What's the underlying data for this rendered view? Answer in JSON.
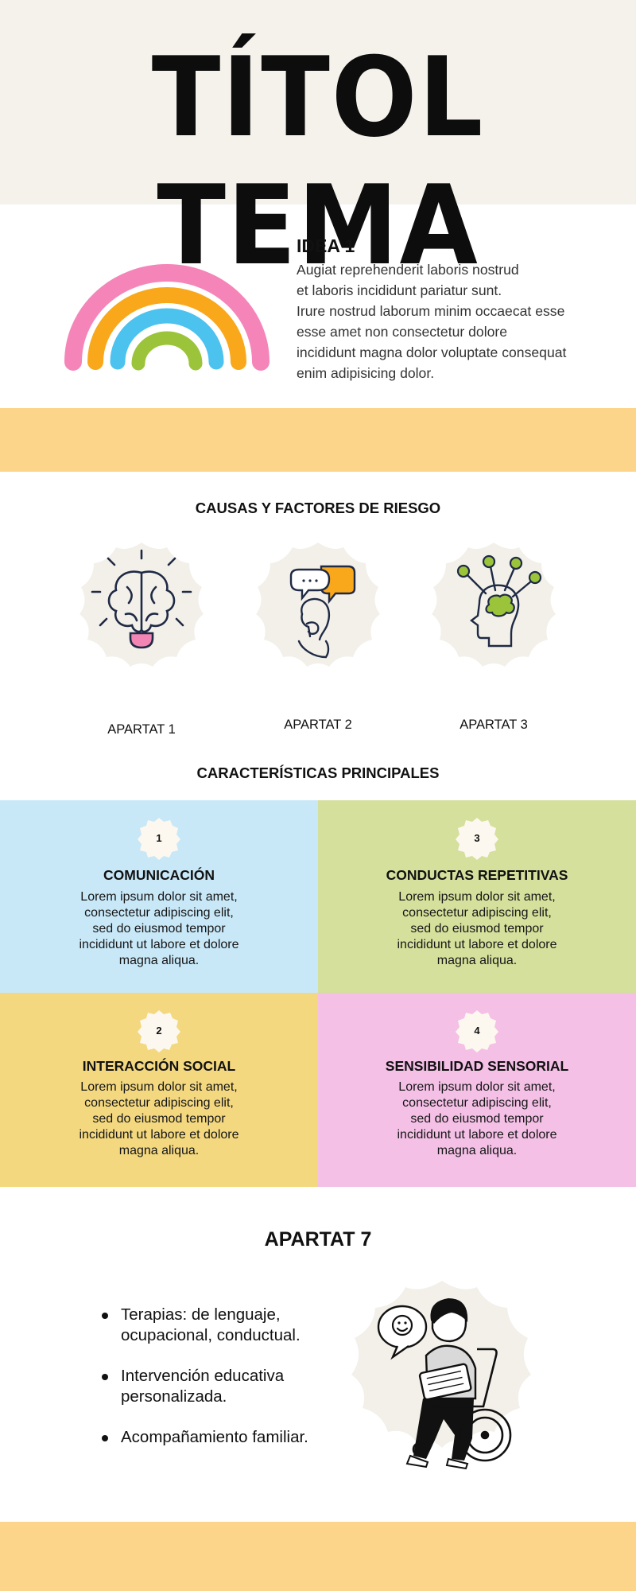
{
  "header": {
    "title": "TÍTOL TEMA"
  },
  "idea": {
    "title": "IDEA 1",
    "lines": [
      "Augiat reprehenderit laboris nostrud",
      "et laboris incididunt pariatur sunt.",
      "Irure nostrud laborum minim occaecat esse",
      "esse amet non consectetur dolore",
      "incididunt magna dolor voluptate consequat",
      "enim adipisicing dolor."
    ]
  },
  "causas": {
    "title": "CAUSAS Y FACTORES DE RIESGO",
    "items": [
      {
        "label": "APARTAT 1",
        "icon": "brain-lightbulb-icon"
      },
      {
        "label": "APARTAT 2",
        "icon": "thinking-person-chat-icon"
      },
      {
        "label": "APARTAT 3",
        "icon": "head-network-icon"
      }
    ]
  },
  "caracteristicas": {
    "title": "CARACTERÍSTICAS PRINCIPALES",
    "tiles": [
      {
        "number": "1",
        "title": "COMUNICACIÓN",
        "color": "#c8e8f8",
        "lines": [
          "Lorem ipsum dolor sit amet,",
          "consectetur adipiscing elit,",
          "sed do eiusmod tempor",
          "incididunt ut labore et dolore",
          "magna aliqua."
        ]
      },
      {
        "number": "2",
        "title": "INTERACCIÓN SOCIAL",
        "color": "#f3d880",
        "lines": [
          "Lorem ipsum dolor sit amet,",
          "consectetur adipiscing elit,",
          "sed do eiusmod tempor",
          "incididunt ut labore et dolore",
          "magna aliqua."
        ]
      },
      {
        "number": "3",
        "title": "CONDUCTAS REPETITIVAS",
        "color": "#d5e09c",
        "lines": [
          "Lorem ipsum dolor sit amet,",
          "consectetur adipiscing elit,",
          "sed do eiusmod tempor",
          "incididunt ut labore et dolore",
          "magna aliqua."
        ]
      },
      {
        "number": "4",
        "title": "SENSIBILIDAD SENSORIAL",
        "color": "#f4c0e6",
        "lines": [
          "Lorem ipsum dolor sit amet,",
          "consectetur adipiscing elit,",
          "sed do eiusmod tempor",
          "incididunt ut labore et dolore",
          "magna aliqua."
        ]
      }
    ]
  },
  "apartat7": {
    "title": "APARTAT 7",
    "items": [
      {
        "lines": [
          "Terapias: de lenguaje,",
          "ocupacional, conductual."
        ]
      },
      {
        "lines": [
          "Intervención educativa",
          "personalizada."
        ]
      },
      {
        "lines": [
          "Acompañamiento familiar."
        ]
      }
    ],
    "illustration": "person-wheelchair-tablet-icon"
  },
  "colors": {
    "title_band": "#f5f2ec",
    "accent_band": "#fdd58a",
    "rainbow": [
      "#f585b9",
      "#f9a81c",
      "#4cc2ef",
      "#9bc43a"
    ]
  }
}
